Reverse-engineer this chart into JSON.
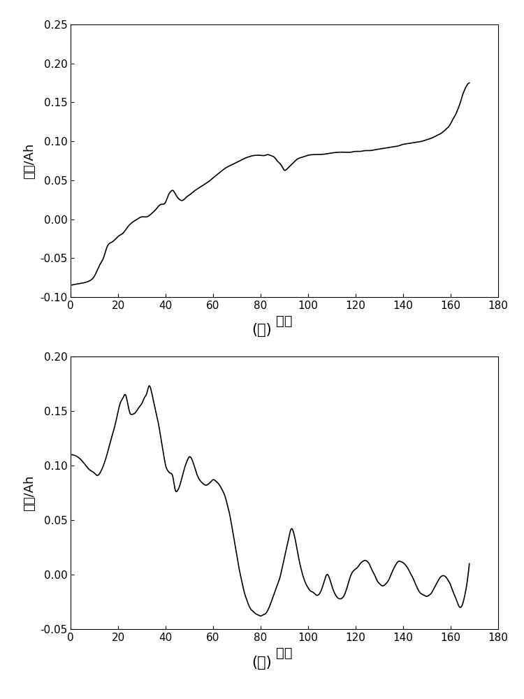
{
  "fig_width": 7.5,
  "fig_height": 10.0,
  "dpi": 100,
  "background_color": "#ffffff",
  "line_color": "#000000",
  "line_width": 1.2,
  "plot_b": {
    "xlim": [
      0,
      180
    ],
    "ylim": [
      -0.1,
      0.25
    ],
    "xticks": [
      0,
      20,
      40,
      60,
      80,
      100,
      120,
      140,
      160,
      180
    ],
    "yticks": [
      -0.1,
      -0.05,
      0,
      0.05,
      0.1,
      0.15,
      0.2,
      0.25
    ],
    "xlabel": "周期",
    "ylabel": "容量/Ah",
    "label": "(ｂ)",
    "xlabel_fontsize": 14,
    "ylabel_fontsize": 13,
    "label_fontsize": 15,
    "tick_fontsize": 11
  },
  "plot_c": {
    "xlim": [
      0,
      180
    ],
    "ylim": [
      -0.05,
      0.2
    ],
    "xticks": [
      0,
      20,
      40,
      60,
      80,
      100,
      120,
      140,
      160,
      180
    ],
    "yticks": [
      -0.05,
      0,
      0.05,
      0.1,
      0.15,
      0.2
    ],
    "xlabel": "周期",
    "ylabel": "容量/Ah",
    "label": "(ｃ)",
    "xlabel_fontsize": 14,
    "ylabel_fontsize": 13,
    "label_fontsize": 15,
    "tick_fontsize": 11
  },
  "pts_b": [
    [
      0,
      -0.085
    ],
    [
      3,
      -0.083
    ],
    [
      5,
      -0.082
    ],
    [
      8,
      -0.079
    ],
    [
      10,
      -0.073
    ],
    [
      12,
      -0.06
    ],
    [
      14,
      -0.048
    ],
    [
      15,
      -0.038
    ],
    [
      16,
      -0.032
    ],
    [
      17,
      -0.03
    ],
    [
      18,
      -0.028
    ],
    [
      19,
      -0.025
    ],
    [
      20,
      -0.022
    ],
    [
      22,
      -0.018
    ],
    [
      24,
      -0.01
    ],
    [
      26,
      -0.004
    ],
    [
      28,
      0.0
    ],
    [
      30,
      0.003
    ],
    [
      32,
      0.003
    ],
    [
      34,
      0.007
    ],
    [
      36,
      0.013
    ],
    [
      38,
      0.019
    ],
    [
      40,
      0.022
    ],
    [
      41,
      0.03
    ],
    [
      42,
      0.035
    ],
    [
      43,
      0.037
    ],
    [
      44,
      0.033
    ],
    [
      45,
      0.028
    ],
    [
      46,
      0.025
    ],
    [
      47,
      0.024
    ],
    [
      48,
      0.026
    ],
    [
      49,
      0.029
    ],
    [
      50,
      0.031
    ],
    [
      52,
      0.036
    ],
    [
      54,
      0.04
    ],
    [
      56,
      0.044
    ],
    [
      58,
      0.048
    ],
    [
      60,
      0.053
    ],
    [
      62,
      0.058
    ],
    [
      64,
      0.063
    ],
    [
      66,
      0.067
    ],
    [
      68,
      0.07
    ],
    [
      70,
      0.073
    ],
    [
      72,
      0.076
    ],
    [
      74,
      0.079
    ],
    [
      75,
      0.08
    ],
    [
      76,
      0.081
    ],
    [
      78,
      0.082
    ],
    [
      80,
      0.082
    ],
    [
      82,
      0.082
    ],
    [
      83,
      0.083
    ],
    [
      84,
      0.082
    ],
    [
      85,
      0.081
    ],
    [
      86,
      0.079
    ],
    [
      87,
      0.075
    ],
    [
      88,
      0.072
    ],
    [
      89,
      0.068
    ],
    [
      90,
      0.063
    ],
    [
      91,
      0.064
    ],
    [
      92,
      0.067
    ],
    [
      93,
      0.07
    ],
    [
      94,
      0.073
    ],
    [
      95,
      0.076
    ],
    [
      96,
      0.078
    ],
    [
      98,
      0.08
    ],
    [
      100,
      0.082
    ],
    [
      105,
      0.083
    ],
    [
      108,
      0.084
    ],
    [
      110,
      0.085
    ],
    [
      115,
      0.086
    ],
    [
      118,
      0.086
    ],
    [
      120,
      0.087
    ],
    [
      122,
      0.087
    ],
    [
      124,
      0.088
    ],
    [
      126,
      0.088
    ],
    [
      128,
      0.089
    ],
    [
      130,
      0.09
    ],
    [
      132,
      0.091
    ],
    [
      134,
      0.092
    ],
    [
      136,
      0.093
    ],
    [
      138,
      0.094
    ],
    [
      140,
      0.096
    ],
    [
      142,
      0.097
    ],
    [
      144,
      0.098
    ],
    [
      146,
      0.099
    ],
    [
      148,
      0.1
    ],
    [
      150,
      0.102
    ],
    [
      152,
      0.104
    ],
    [
      154,
      0.107
    ],
    [
      156,
      0.11
    ],
    [
      158,
      0.115
    ],
    [
      160,
      0.122
    ],
    [
      161,
      0.128
    ],
    [
      162,
      0.133
    ],
    [
      163,
      0.14
    ],
    [
      164,
      0.148
    ],
    [
      165,
      0.158
    ],
    [
      166,
      0.166
    ],
    [
      167,
      0.172
    ],
    [
      168,
      0.175
    ]
  ],
  "pts_c": [
    [
      0,
      0.11
    ],
    [
      2,
      0.109
    ],
    [
      4,
      0.106
    ],
    [
      6,
      0.101
    ],
    [
      8,
      0.096
    ],
    [
      10,
      0.093
    ],
    [
      11,
      0.091
    ],
    [
      13,
      0.096
    ],
    [
      15,
      0.108
    ],
    [
      17,
      0.124
    ],
    [
      19,
      0.14
    ],
    [
      20,
      0.15
    ],
    [
      21,
      0.158
    ],
    [
      22,
      0.162
    ],
    [
      23,
      0.165
    ],
    [
      24,
      0.157
    ],
    [
      25,
      0.148
    ],
    [
      26,
      0.147
    ],
    [
      27,
      0.148
    ],
    [
      28,
      0.151
    ],
    [
      29,
      0.154
    ],
    [
      30,
      0.157
    ],
    [
      31,
      0.162
    ],
    [
      32,
      0.166
    ],
    [
      33,
      0.173
    ],
    [
      34,
      0.168
    ],
    [
      35,
      0.158
    ],
    [
      36,
      0.148
    ],
    [
      37,
      0.138
    ],
    [
      38,
      0.125
    ],
    [
      39,
      0.112
    ],
    [
      40,
      0.1
    ],
    [
      41,
      0.095
    ],
    [
      42,
      0.093
    ],
    [
      43,
      0.09
    ],
    [
      44,
      0.078
    ],
    [
      45,
      0.077
    ],
    [
      46,
      0.082
    ],
    [
      47,
      0.09
    ],
    [
      48,
      0.098
    ],
    [
      49,
      0.104
    ],
    [
      50,
      0.108
    ],
    [
      51,
      0.106
    ],
    [
      52,
      0.1
    ],
    [
      53,
      0.093
    ],
    [
      54,
      0.088
    ],
    [
      55,
      0.085
    ],
    [
      56,
      0.083
    ],
    [
      57,
      0.082
    ],
    [
      58,
      0.083
    ],
    [
      59,
      0.085
    ],
    [
      60,
      0.087
    ],
    [
      61,
      0.086
    ],
    [
      62,
      0.084
    ],
    [
      63,
      0.081
    ],
    [
      64,
      0.077
    ],
    [
      65,
      0.072
    ],
    [
      66,
      0.064
    ],
    [
      67,
      0.055
    ],
    [
      68,
      0.043
    ],
    [
      69,
      0.03
    ],
    [
      70,
      0.018
    ],
    [
      71,
      0.005
    ],
    [
      72,
      -0.005
    ],
    [
      73,
      -0.015
    ],
    [
      74,
      -0.022
    ],
    [
      75,
      -0.028
    ],
    [
      76,
      -0.032
    ],
    [
      77,
      -0.034
    ],
    [
      78,
      -0.036
    ],
    [
      79,
      -0.037
    ],
    [
      80,
      -0.038
    ],
    [
      81,
      -0.037
    ],
    [
      82,
      -0.036
    ],
    [
      83,
      -0.033
    ],
    [
      84,
      -0.028
    ],
    [
      85,
      -0.022
    ],
    [
      86,
      -0.016
    ],
    [
      87,
      -0.01
    ],
    [
      88,
      -0.004
    ],
    [
      89,
      0.005
    ],
    [
      90,
      0.015
    ],
    [
      91,
      0.025
    ],
    [
      92,
      0.035
    ],
    [
      93,
      0.042
    ],
    [
      94,
      0.038
    ],
    [
      95,
      0.028
    ],
    [
      96,
      0.016
    ],
    [
      97,
      0.006
    ],
    [
      98,
      -0.002
    ],
    [
      99,
      -0.008
    ],
    [
      100,
      -0.012
    ],
    [
      101,
      -0.015
    ],
    [
      102,
      -0.016
    ],
    [
      103,
      -0.018
    ],
    [
      104,
      -0.019
    ],
    [
      105,
      -0.017
    ],
    [
      106,
      -0.012
    ],
    [
      107,
      -0.005
    ],
    [
      108,
      0.0
    ],
    [
      109,
      -0.003
    ],
    [
      110,
      -0.01
    ],
    [
      111,
      -0.016
    ],
    [
      112,
      -0.02
    ],
    [
      113,
      -0.022
    ],
    [
      114,
      -0.022
    ],
    [
      115,
      -0.02
    ],
    [
      116,
      -0.015
    ],
    [
      117,
      -0.008
    ],
    [
      118,
      -0.001
    ],
    [
      119,
      0.003
    ],
    [
      120,
      0.005
    ],
    [
      121,
      0.007
    ],
    [
      122,
      0.01
    ],
    [
      123,
      0.012
    ],
    [
      124,
      0.013
    ],
    [
      125,
      0.012
    ],
    [
      126,
      0.009
    ],
    [
      127,
      0.004
    ],
    [
      128,
      0.0
    ],
    [
      129,
      -0.005
    ],
    [
      130,
      -0.008
    ],
    [
      131,
      -0.01
    ],
    [
      132,
      -0.01
    ],
    [
      133,
      -0.008
    ],
    [
      134,
      -0.005
    ],
    [
      135,
      0.0
    ],
    [
      136,
      0.005
    ],
    [
      137,
      0.009
    ],
    [
      138,
      0.012
    ],
    [
      139,
      0.012
    ],
    [
      140,
      0.011
    ],
    [
      141,
      0.009
    ],
    [
      142,
      0.006
    ],
    [
      143,
      0.002
    ],
    [
      144,
      -0.002
    ],
    [
      145,
      -0.007
    ],
    [
      146,
      -0.012
    ],
    [
      147,
      -0.016
    ],
    [
      148,
      -0.018
    ],
    [
      149,
      -0.019
    ],
    [
      150,
      -0.02
    ],
    [
      151,
      -0.019
    ],
    [
      152,
      -0.017
    ],
    [
      153,
      -0.013
    ],
    [
      154,
      -0.009
    ],
    [
      155,
      -0.005
    ],
    [
      156,
      -0.002
    ],
    [
      157,
      -0.001
    ],
    [
      158,
      -0.002
    ],
    [
      159,
      -0.005
    ],
    [
      160,
      -0.009
    ],
    [
      161,
      -0.015
    ],
    [
      162,
      -0.02
    ],
    [
      163,
      -0.026
    ],
    [
      164,
      -0.03
    ],
    [
      165,
      -0.028
    ],
    [
      166,
      -0.02
    ],
    [
      167,
      -0.008
    ],
    [
      168,
      0.01
    ]
  ]
}
